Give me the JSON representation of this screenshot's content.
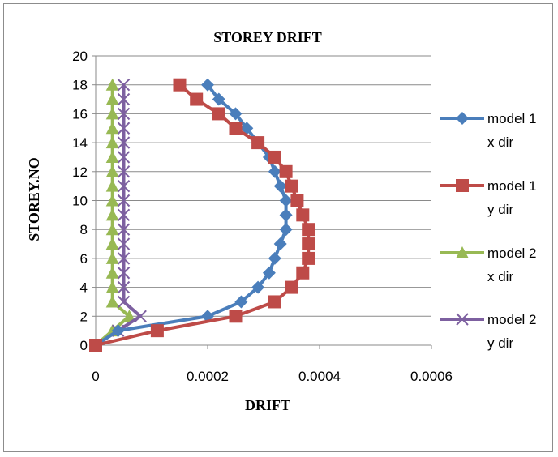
{
  "chart_data": {
    "type": "line",
    "title": "STOREY DRIFT",
    "xlabel": "DRIFT",
    "ylabel": "STOREY.NO",
    "xlim": [
      0,
      0.0006
    ],
    "ylim": [
      0,
      20
    ],
    "x_ticks": [
      "0",
      "0.0002",
      "0.0004",
      "0.0006"
    ],
    "y_ticks": [
      "0",
      "2",
      "4",
      "6",
      "8",
      "10",
      "12",
      "14",
      "16",
      "18",
      "20"
    ],
    "grid": "horizontal",
    "legend_position": "right",
    "series": [
      {
        "name": "model 1 x dir",
        "legend_lines": [
          "model 1",
          "x dir"
        ],
        "color": "#4A7EBB",
        "marker": "diamond",
        "points": [
          [
            0,
            0
          ],
          [
            4e-05,
            1
          ],
          [
            0.0002,
            2
          ],
          [
            0.00026,
            3
          ],
          [
            0.00029,
            4
          ],
          [
            0.00031,
            5
          ],
          [
            0.00032,
            6
          ],
          [
            0.00033,
            7
          ],
          [
            0.00034,
            8
          ],
          [
            0.00034,
            9
          ],
          [
            0.00034,
            10
          ],
          [
            0.00033,
            11
          ],
          [
            0.00032,
            12
          ],
          [
            0.00031,
            13
          ],
          [
            0.00029,
            14
          ],
          [
            0.00027,
            15
          ],
          [
            0.00025,
            16
          ],
          [
            0.00022,
            17
          ],
          [
            0.0002,
            18
          ]
        ]
      },
      {
        "name": "model 1 y dir",
        "legend_lines": [
          "model 1",
          "y dir"
        ],
        "color": "#BE4B48",
        "marker": "square",
        "points": [
          [
            0,
            0
          ],
          [
            0.00011,
            1
          ],
          [
            0.00025,
            2
          ],
          [
            0.00032,
            3
          ],
          [
            0.00035,
            4
          ],
          [
            0.00037,
            5
          ],
          [
            0.00038,
            6
          ],
          [
            0.00038,
            7
          ],
          [
            0.00038,
            8
          ],
          [
            0.00037,
            9
          ],
          [
            0.00036,
            10
          ],
          [
            0.00035,
            11
          ],
          [
            0.00034,
            12
          ],
          [
            0.00032,
            13
          ],
          [
            0.00029,
            14
          ],
          [
            0.00025,
            15
          ],
          [
            0.00022,
            16
          ],
          [
            0.00018,
            17
          ],
          [
            0.00015,
            18
          ]
        ]
      },
      {
        "name": "model 2 x dir",
        "legend_lines": [
          "model 2",
          "x dir"
        ],
        "color": "#98B954",
        "marker": "triangle",
        "points": [
          [
            0,
            0
          ],
          [
            3e-05,
            1
          ],
          [
            6e-05,
            2
          ],
          [
            3e-05,
            3
          ],
          [
            3e-05,
            4
          ],
          [
            3e-05,
            5
          ],
          [
            3e-05,
            6
          ],
          [
            3e-05,
            7
          ],
          [
            3e-05,
            8
          ],
          [
            3e-05,
            9
          ],
          [
            3e-05,
            10
          ],
          [
            3e-05,
            11
          ],
          [
            3e-05,
            12
          ],
          [
            3e-05,
            13
          ],
          [
            3e-05,
            14
          ],
          [
            3e-05,
            15
          ],
          [
            3e-05,
            16
          ],
          [
            3e-05,
            17
          ],
          [
            3e-05,
            18
          ]
        ]
      },
      {
        "name": "model 2 y dir",
        "legend_lines": [
          "model 2",
          "y dir"
        ],
        "color": "#7D60A0",
        "marker": "x",
        "points": [
          [
            0,
            0
          ],
          [
            4e-05,
            1
          ],
          [
            8e-05,
            2
          ],
          [
            5e-05,
            3
          ],
          [
            5e-05,
            4
          ],
          [
            5e-05,
            5
          ],
          [
            5e-05,
            6
          ],
          [
            5e-05,
            7
          ],
          [
            5e-05,
            8
          ],
          [
            5e-05,
            9
          ],
          [
            5e-05,
            10
          ],
          [
            5e-05,
            11
          ],
          [
            5e-05,
            12
          ],
          [
            5e-05,
            13
          ],
          [
            5e-05,
            14
          ],
          [
            5e-05,
            15
          ],
          [
            5e-05,
            16
          ],
          [
            5e-05,
            17
          ],
          [
            5e-05,
            18
          ]
        ]
      }
    ]
  }
}
